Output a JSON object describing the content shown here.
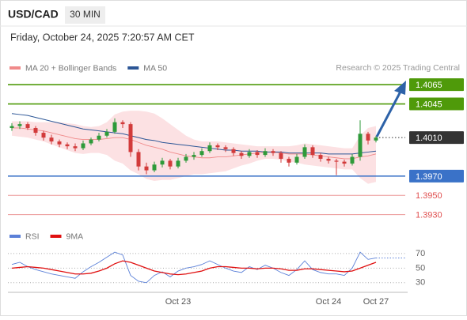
{
  "chart_data": {
    "type": "candlestick",
    "title": "USD/CAD",
    "timeframe": "30 MIN",
    "subtitle": "Friday, October 24, 2025 7:20:57 AM CET",
    "source": "Research © 2025 Trading Central",
    "up_color": "#2e9a3a",
    "down_color": "#d23b3b",
    "categories": [
      null,
      null,
      null,
      null,
      null,
      null,
      null,
      null,
      null,
      null,
      null,
      null,
      null,
      null,
      null,
      null,
      null,
      null,
      null,
      null,
      null,
      "Oct 23",
      null,
      null,
      null,
      null,
      null,
      null,
      null,
      null,
      null,
      null,
      null,
      null,
      null,
      null,
      null,
      null,
      null,
      null,
      "Oct 24",
      null,
      null,
      null,
      null,
      null,
      "Oct 27"
    ],
    "ohlc": [
      [
        1.402,
        1.4025,
        1.4017,
        1.4022
      ],
      [
        1.4022,
        1.4027,
        1.4019,
        1.4024
      ],
      [
        1.4024,
        1.4026,
        1.4018,
        1.402
      ],
      [
        1.402,
        1.4022,
        1.4012,
        1.4015
      ],
      [
        1.4015,
        1.4017,
        1.4007,
        1.401
      ],
      [
        1.401,
        1.4013,
        1.4003,
        1.4006
      ],
      [
        1.4006,
        1.4008,
        1.4,
        1.4003
      ],
      [
        1.4003,
        1.4005,
        1.3998,
        1.4001
      ],
      [
        1.4001,
        1.4004,
        1.3996,
        1.3999
      ],
      [
        1.3999,
        1.4007,
        1.3997,
        1.4004
      ],
      [
        1.4004,
        1.401,
        1.4002,
        1.4008
      ],
      [
        1.4008,
        1.4015,
        1.4006,
        1.4012
      ],
      [
        1.4012,
        1.4019,
        1.401,
        1.4016
      ],
      [
        1.4016,
        1.403,
        1.4014,
        1.4026
      ],
      [
        1.4026,
        1.4028,
        1.402,
        1.4024
      ],
      [
        1.4024,
        1.4026,
        1.399,
        1.3995
      ],
      [
        1.3995,
        1.3998,
        1.3976,
        1.398
      ],
      [
        1.398,
        1.3984,
        1.3972,
        1.3976
      ],
      [
        1.3976,
        1.3985,
        1.3974,
        1.3982
      ],
      [
        1.3982,
        1.3989,
        1.3979,
        1.3986
      ],
      [
        1.3986,
        1.3988,
        1.3977,
        1.398
      ],
      [
        1.398,
        1.3989,
        1.3978,
        1.3986
      ],
      [
        1.3986,
        1.3993,
        1.3984,
        1.399
      ],
      [
        1.399,
        1.3995,
        1.3987,
        1.3992
      ],
      [
        1.3992,
        1.3999,
        1.399,
        1.3996
      ],
      [
        1.3996,
        1.4005,
        1.3994,
        1.4002
      ],
      [
        1.4002,
        1.4004,
        1.3997,
        1.4
      ],
      [
        1.4,
        1.4002,
        1.3995,
        1.3998
      ],
      [
        1.3998,
        1.4,
        1.3991,
        1.3994
      ],
      [
        1.3994,
        1.3996,
        1.3988,
        1.3991
      ],
      [
        1.3991,
        1.3998,
        1.3989,
        1.3995
      ],
      [
        1.3995,
        1.3997,
        1.3989,
        1.3992
      ],
      [
        1.3992,
        1.3999,
        1.399,
        1.3996
      ],
      [
        1.3996,
        1.3998,
        1.3991,
        1.3994
      ],
      [
        1.3994,
        1.3996,
        1.3984,
        1.3988
      ],
      [
        1.3988,
        1.399,
        1.398,
        1.3984
      ],
      [
        1.3984,
        1.3993,
        1.3982,
        1.399
      ],
      [
        1.399,
        1.4003,
        1.3988,
        1.4
      ],
      [
        1.4,
        1.4002,
        1.3989,
        1.3992
      ],
      [
        1.3992,
        1.3994,
        1.3985,
        1.3988
      ],
      [
        1.3988,
        1.399,
        1.3983,
        1.3986
      ],
      [
        1.3986,
        1.3988,
        1.3971,
        1.3985
      ],
      [
        1.3985,
        1.3987,
        1.398,
        1.3983
      ],
      [
        1.3983,
        1.3993,
        1.3981,
        1.399
      ],
      [
        1.399,
        1.4028,
        1.3986,
        1.4014
      ],
      [
        1.4014,
        1.4016,
        1.4003,
        1.4007
      ],
      [
        1.4007,
        1.4012,
        1.4005,
        1.401
      ]
    ],
    "series": [
      {
        "name": "MA 20 + Bollinger Bands",
        "color": "#f08a8a",
        "band_color": "#fbd9dc",
        "values": [
          1.402,
          1.402,
          1.4019,
          1.4018,
          1.4017,
          1.4015,
          1.4013,
          1.4011,
          1.4009,
          1.4008,
          1.4008,
          1.4008,
          1.4009,
          1.401,
          1.401,
          1.4008,
          1.4005,
          1.4002,
          1.4,
          1.3998,
          1.3995,
          1.3993,
          1.3991,
          1.399,
          1.3989,
          1.3989,
          1.399,
          1.399,
          1.3991,
          1.3992,
          1.3993,
          1.3994,
          1.3995,
          1.3995,
          1.3994,
          1.3993,
          1.3993,
          1.3993,
          1.3992,
          1.3991,
          1.399,
          1.3989,
          1.3988,
          1.3988,
          1.399,
          1.3991,
          1.3993
        ],
        "upper": [
          1.4027,
          1.4027,
          1.4027,
          1.4026,
          1.4026,
          1.4026,
          1.4026,
          1.4025,
          1.4024,
          1.4022,
          1.4021,
          1.4022,
          1.4026,
          1.4034,
          1.4037,
          1.4038,
          1.4038,
          1.4037,
          1.4035,
          1.403,
          1.4024,
          1.4018,
          1.4012,
          1.4008,
          1.4006,
          1.4006,
          1.4006,
          1.4005,
          1.4004,
          1.4003,
          1.4002,
          1.4001,
          1.4001,
          1.4001,
          1.4001,
          1.4001,
          1.4002,
          1.4004,
          1.4003,
          1.4002,
          1.4001,
          1.4,
          1.3999,
          1.3999,
          1.4012,
          1.402,
          1.4022
        ],
        "lower": [
          1.4012,
          1.4011,
          1.401,
          1.4008,
          1.4006,
          1.4003,
          1.4,
          1.3997,
          1.3994,
          1.3993,
          1.3994,
          1.3994,
          1.3992,
          1.3986,
          1.3983,
          1.3976,
          1.3972,
          1.3967,
          1.3965,
          1.3966,
          1.3966,
          1.3968,
          1.397,
          1.3972,
          1.3972,
          1.3973,
          1.3974,
          1.3975,
          1.3978,
          1.3981,
          1.3983,
          1.3986,
          1.3988,
          1.3988,
          1.3987,
          1.3985,
          1.3984,
          1.3982,
          1.3981,
          1.398,
          1.3979,
          1.3978,
          1.3977,
          1.3977,
          1.3968,
          1.3962,
          1.3964
        ]
      },
      {
        "name": "MA 50",
        "color": "#2c5696",
        "values": [
          1.4035,
          1.4034,
          1.4033,
          1.4031,
          1.4029,
          1.4027,
          1.4025,
          1.4023,
          1.4021,
          1.4019,
          1.4018,
          1.4017,
          1.4016,
          1.4015,
          1.4014,
          1.4012,
          1.401,
          1.4008,
          1.4007,
          1.4005,
          1.4004,
          1.4003,
          1.4002,
          1.4001,
          1.4,
          1.3999,
          1.3998,
          1.3997,
          1.3997,
          1.3996,
          1.3996,
          1.3996,
          1.3995,
          1.3995,
          1.3995,
          1.3994,
          1.3994,
          1.3994,
          1.3994,
          1.3994,
          1.3993,
          1.3993,
          1.3993,
          1.3993,
          1.3994,
          1.3995,
          1.3996
        ]
      }
    ],
    "ylim": [
      1.3919,
      1.4075
    ],
    "levels": [
      {
        "value": 1.4065,
        "label": "1.4065",
        "color": "#4f9a0a",
        "style": "box"
      },
      {
        "value": 1.4045,
        "label": "1.4045",
        "color": "#4f9a0a",
        "style": "box"
      },
      {
        "value": 1.401,
        "label": "1.4010",
        "color": "#333333",
        "style": "current"
      },
      {
        "value": 1.397,
        "label": "1.3970",
        "color": "#3a72c8",
        "style": "box"
      },
      {
        "value": 1.395,
        "label": "1.3950",
        "color": "#e05050",
        "style": "text"
      },
      {
        "value": 1.393,
        "label": "1.3930",
        "color": "#e05050",
        "style": "text"
      }
    ],
    "rsi": {
      "ylim": [
        20,
        80
      ],
      "yticks": [
        30,
        50,
        70
      ],
      "series": [
        {
          "name": "RSI",
          "color": "#5b80d8",
          "values": [
            55,
            58,
            52,
            48,
            45,
            42,
            40,
            38,
            36,
            45,
            52,
            58,
            65,
            72,
            68,
            40,
            32,
            30,
            40,
            45,
            38,
            46,
            50,
            52,
            55,
            60,
            55,
            50,
            46,
            44,
            52,
            48,
            54,
            50,
            44,
            40,
            48,
            60,
            48,
            44,
            42,
            42,
            40,
            50,
            72,
            62,
            64
          ]
        },
        {
          "name": "9MA",
          "color": "#e01010",
          "values": [
            50,
            51,
            52,
            51,
            50,
            48,
            46,
            44,
            42,
            42,
            43,
            46,
            50,
            56,
            60,
            58,
            54,
            50,
            46,
            44,
            42,
            41,
            42,
            44,
            46,
            50,
            52,
            52,
            51,
            50,
            50,
            49,
            50,
            50,
            49,
            47,
            47,
            49,
            49,
            48,
            47,
            46,
            45,
            46,
            50,
            54,
            58
          ]
        }
      ]
    }
  }
}
